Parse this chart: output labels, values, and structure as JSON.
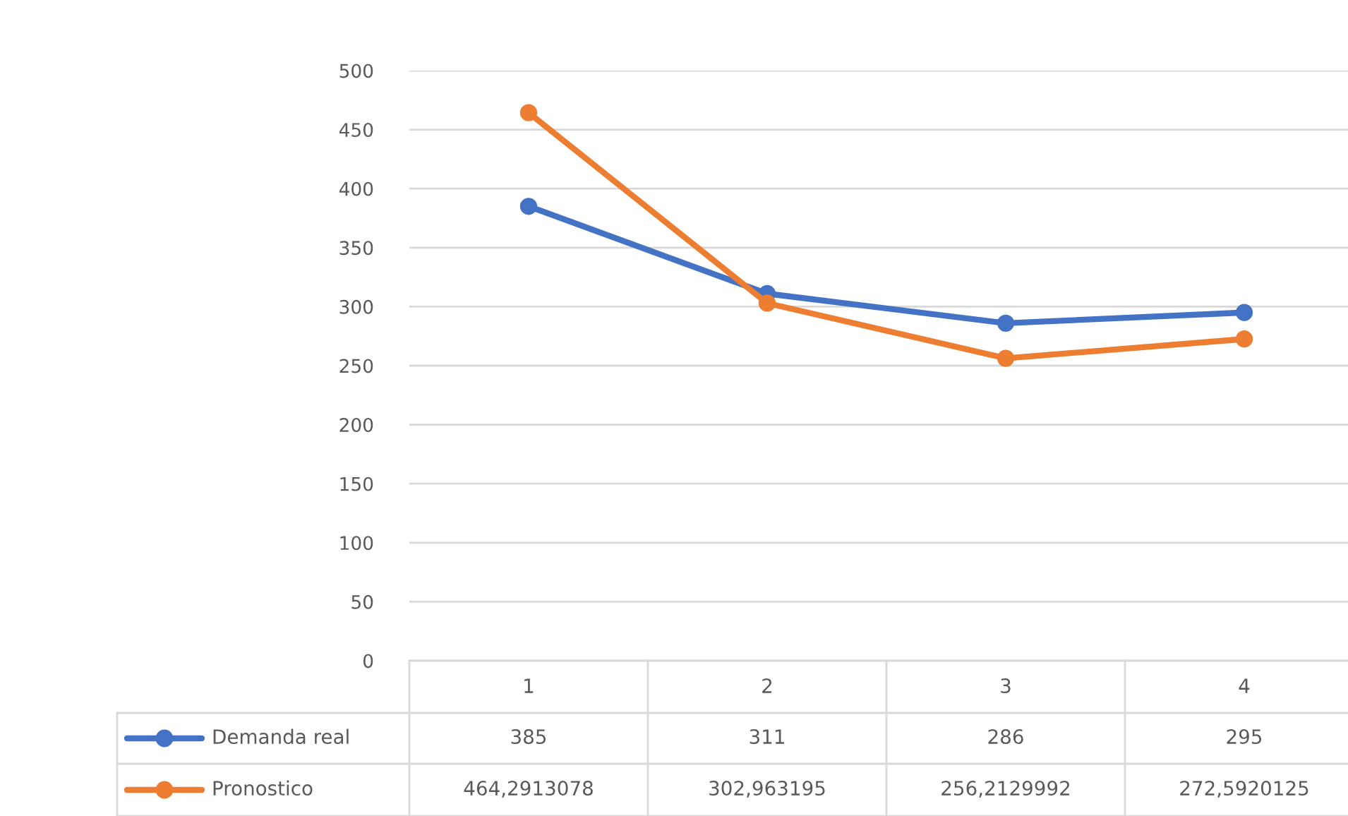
{
  "chart_data": {
    "type": "line",
    "categories": [
      "1",
      "2",
      "3",
      "4"
    ],
    "series": [
      {
        "name": "Demanda real",
        "color": "#4472c4",
        "values": [
          385,
          311,
          286,
          295
        ],
        "value_labels": [
          "385",
          "311",
          "286",
          "295"
        ]
      },
      {
        "name": "Pronostico",
        "color": "#ed7d31",
        "values": [
          464.2913078,
          302.963195,
          256.2129992,
          272.5920125
        ],
        "value_labels": [
          "464,2913078",
          "302,963195",
          "256,2129992",
          "272,5920125"
        ]
      }
    ],
    "ylim": [
      0,
      500
    ],
    "yticks": [
      0,
      50,
      100,
      150,
      200,
      250,
      300,
      350,
      400,
      450,
      500
    ],
    "grid": "y",
    "legend": "bottom",
    "marker": "circle",
    "line_style": "solid"
  }
}
